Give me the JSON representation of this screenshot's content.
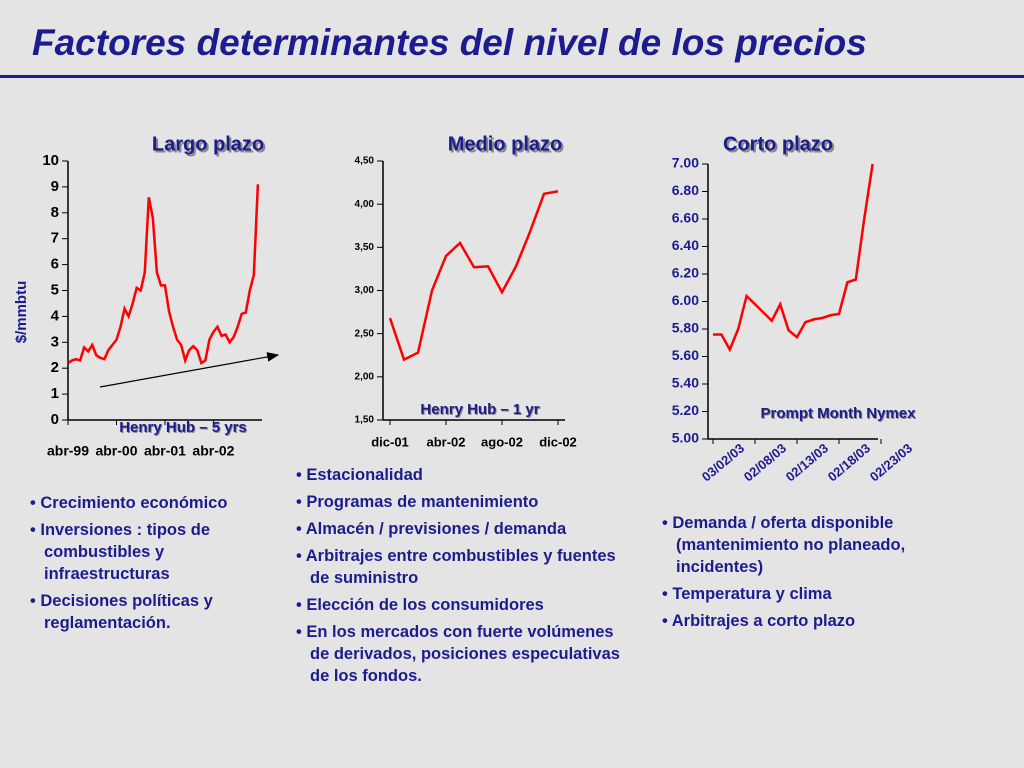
{
  "title": "Factores determinantes del nivel de los precios",
  "chart_data": [
    {
      "type": "line",
      "title": "Largo plazo",
      "y_label": "$/mmbtu",
      "annotation": "Henry Hub – 5 yrs",
      "color": "#ff0000",
      "categories": [
        "abr-99",
        null,
        null,
        null,
        null,
        null,
        null,
        null,
        null,
        null,
        null,
        null,
        "abr-00",
        null,
        null,
        null,
        null,
        null,
        null,
        null,
        null,
        null,
        null,
        null,
        "abr-01",
        null,
        null,
        null,
        null,
        null,
        null,
        null,
        null,
        null,
        null,
        null,
        "abr-02",
        null,
        null,
        null,
        null,
        null,
        null,
        null,
        null,
        null,
        null,
        null
      ],
      "values": [
        2.2,
        2.3,
        2.35,
        2.3,
        2.8,
        2.65,
        2.9,
        2.5,
        2.4,
        2.35,
        2.7,
        2.9,
        3.1,
        3.6,
        4.3,
        4.0,
        4.5,
        5.1,
        5.0,
        5.7,
        8.6,
        7.8,
        5.7,
        5.2,
        5.2,
        4.2,
        3.6,
        3.1,
        2.9,
        2.3,
        2.7,
        2.85,
        2.7,
        2.2,
        2.3,
        3.1,
        3.4,
        3.6,
        3.25,
        3.3,
        3.0,
        3.2,
        3.6,
        4.1,
        4.15,
        5.0,
        5.6,
        9.1
      ],
      "ylim": [
        0,
        10
      ],
      "yticks": [
        0,
        1,
        2,
        3,
        4,
        5,
        6,
        7,
        8,
        9,
        10
      ]
    },
    {
      "type": "line",
      "title": "Medio plazo",
      "annotation": "Henry Hub – 1 yr",
      "color": "#ff0000",
      "categories": [
        "dic-01",
        null,
        null,
        null,
        "abr-02",
        null,
        null,
        null,
        "ago-02",
        null,
        null,
        null,
        "dic-02"
      ],
      "values": [
        2.68,
        2.2,
        2.28,
        3.0,
        3.4,
        3.55,
        3.27,
        3.28,
        2.98,
        3.28,
        3.68,
        4.12,
        4.15
      ],
      "ylim": [
        1.5,
        4.5
      ],
      "yticks": [
        {
          "value": 1.5,
          "label": "1,50"
        },
        {
          "value": 2,
          "label": "2,00"
        },
        {
          "value": 2.5,
          "label": "2,50"
        },
        {
          "value": 3,
          "label": "3,00"
        },
        {
          "value": 3.5,
          "label": "3,50"
        },
        {
          "value": 4,
          "label": "4,00"
        },
        {
          "value": 4.5,
          "label": "4,50"
        }
      ]
    },
    {
      "type": "line",
      "title": "Corto plazo",
      "annotation": "Prompt Month Nymex",
      "color": "#ff0000",
      "categories": [
        "03/02/03",
        null,
        null,
        null,
        null,
        "02/08/03",
        null,
        null,
        null,
        null,
        "02/13/03",
        null,
        null,
        null,
        null,
        "02/18/03",
        null,
        null,
        null,
        null,
        "02/23/03"
      ],
      "values": [
        5.76,
        5.76,
        5.65,
        5.8,
        6.04,
        5.98,
        5.92,
        5.86,
        5.98,
        5.79,
        5.74,
        5.85,
        5.87,
        5.88,
        5.9,
        5.91,
        6.14,
        6.16,
        6.6,
        7.0,
        null
      ],
      "ylim": [
        5,
        7
      ],
      "yticks": [
        {
          "value": 5,
          "label": "5.00"
        },
        {
          "value": 5.2,
          "label": "5.20"
        },
        {
          "value": 5.4,
          "label": "5.40"
        },
        {
          "value": 5.6,
          "label": "5.60"
        },
        {
          "value": 5.8,
          "label": "5.80"
        },
        {
          "value": 6,
          "label": "6.00"
        },
        {
          "value": 6.2,
          "label": "6.20"
        },
        {
          "value": 6.4,
          "label": "6.40"
        },
        {
          "value": 6.6,
          "label": "6.60"
        },
        {
          "value": 6.8,
          "label": "6.80"
        },
        {
          "value": 7,
          "label": "7.00"
        }
      ]
    }
  ],
  "columns": [
    [
      "Crecimiento económico",
      "Inversiones : tipos de combustibles y infraestructuras",
      "Decisiones políticas y reglamentación."
    ],
    [
      "Estacionalidad",
      "Programas de mantenimiento",
      "Almacén / previsiones / demanda",
      "Arbitrajes entre combustibles y fuentes de suministro",
      "Elección de los consumidores",
      "En los mercados con fuerte volúmenes de derivados, posiciones especulativas de los fondos."
    ],
    [
      "Demanda / oferta disponible (mantenimiento no planeado, incidentes)",
      "Temperatura y clima",
      "Arbitrajes a corto plazo"
    ]
  ]
}
